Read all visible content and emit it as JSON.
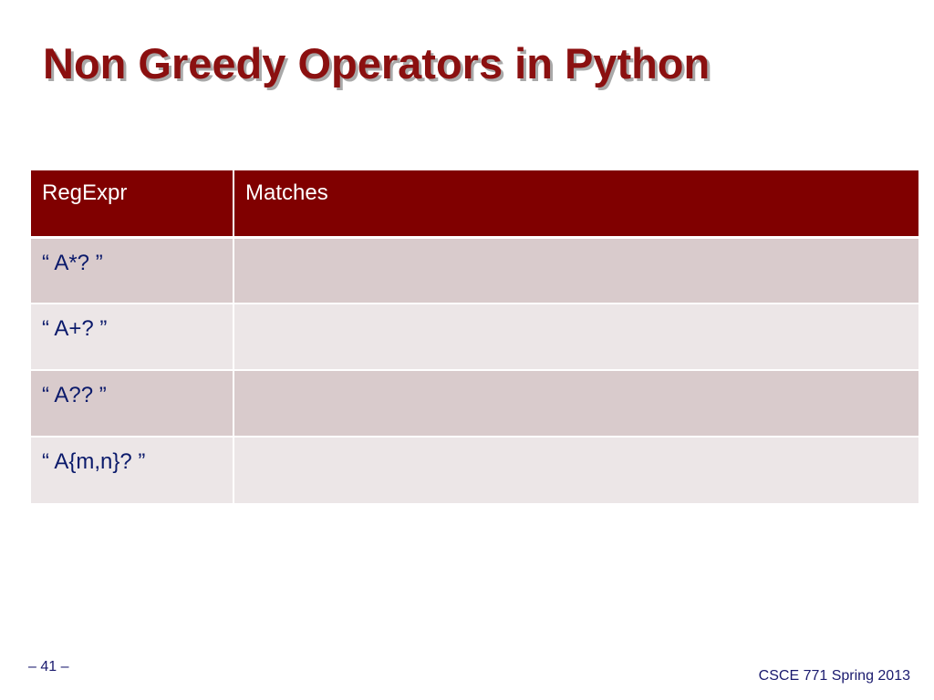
{
  "slide": {
    "title": "Non Greedy Operators in Python"
  },
  "table": {
    "headers": [
      "RegExpr",
      "Matches"
    ],
    "rows": [
      [
        "“ A*? ”",
        ""
      ],
      [
        "“ A+? ”",
        ""
      ],
      [
        "“ A?? ”",
        ""
      ],
      [
        "“ A{m,n}? ”",
        ""
      ]
    ]
  },
  "footer": {
    "page_number": "– 41 –",
    "course": "CSCE 771 Spring 2013"
  },
  "colors": {
    "title": "#8b1010",
    "header_bg": "#800000",
    "row_odd": "#d9cbcc",
    "row_even": "#ece6e7",
    "body_text": "#0b1a6b"
  }
}
